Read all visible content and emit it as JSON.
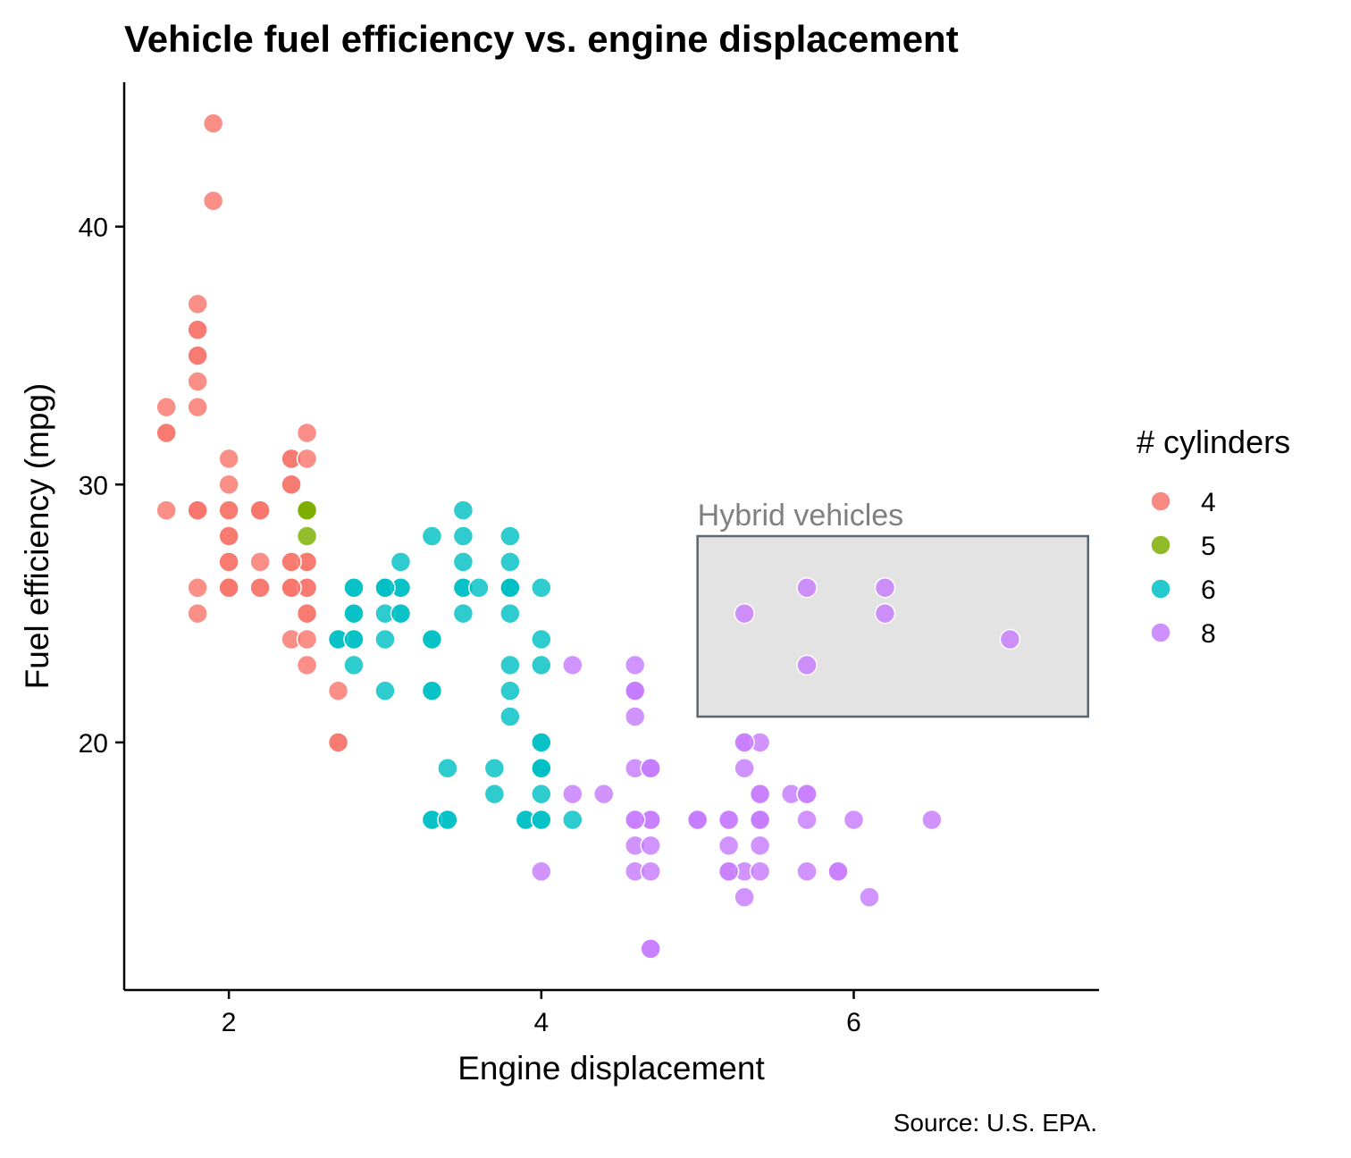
{
  "chart_data": {
    "type": "scatter",
    "title": "Vehicle fuel efficiency vs. engine displacement",
    "xlabel": "Engine displacement",
    "ylabel": "Fuel efficiency (mpg)",
    "caption": "Source: U.S. EPA.",
    "xlim": [
      1.33,
      7.57
    ],
    "ylim": [
      10.4,
      45.6
    ],
    "xticks": [
      2,
      4,
      6
    ],
    "yticks": [
      20,
      30,
      40
    ],
    "grid": false,
    "legend": {
      "title": "# cylinders",
      "position": "right"
    },
    "annotation": {
      "label": "Hybrid vehicles",
      "xmin": 5.0,
      "xmax": 7.5,
      "ymin": 21,
      "ymax": 28,
      "fill": "#e3e3e3",
      "stroke": "#5a6670",
      "text_color": "#808080"
    },
    "series": [
      {
        "name": "4",
        "color": "#F8766D",
        "points": [
          [
            1.8,
            29
          ],
          [
            1.8,
            29
          ],
          [
            2.0,
            31
          ],
          [
            2.0,
            30
          ],
          [
            1.8,
            26
          ],
          [
            1.8,
            25
          ],
          [
            2.0,
            28
          ],
          [
            2.0,
            26
          ],
          [
            2.0,
            29
          ],
          [
            2.0,
            27
          ],
          [
            2.4,
            27
          ],
          [
            2.4,
            30
          ],
          [
            2.4,
            31
          ],
          [
            2.4,
            26
          ],
          [
            2.2,
            26
          ],
          [
            2.2,
            29
          ],
          [
            2.4,
            31
          ],
          [
            2.4,
            30
          ],
          [
            2.2,
            29
          ],
          [
            2.2,
            27
          ],
          [
            2.4,
            26
          ],
          [
            2.4,
            24
          ],
          [
            2.5,
            29
          ],
          [
            2.5,
            26
          ],
          [
            2.5,
            27
          ],
          [
            2.5,
            27
          ],
          [
            2.5,
            31
          ],
          [
            2.5,
            32
          ],
          [
            2.5,
            24
          ],
          [
            2.5,
            23
          ],
          [
            2.5,
            25
          ],
          [
            2.5,
            26
          ],
          [
            2.7,
            22
          ],
          [
            2.7,
            20
          ],
          [
            2.7,
            20
          ],
          [
            1.8,
            29
          ],
          [
            1.8,
            29
          ],
          [
            1.8,
            37
          ],
          [
            1.8,
            35
          ],
          [
            1.8,
            35
          ],
          [
            1.8,
            36
          ],
          [
            1.8,
            36
          ],
          [
            1.9,
            44
          ],
          [
            1.9,
            41
          ],
          [
            1.8,
            34
          ],
          [
            1.8,
            33
          ],
          [
            1.6,
            32
          ],
          [
            1.6,
            32
          ],
          [
            1.6,
            33
          ],
          [
            1.6,
            29
          ],
          [
            2.0,
            28
          ],
          [
            2.0,
            26
          ],
          [
            2.0,
            27
          ],
          [
            2.0,
            29
          ],
          [
            2.2,
            26
          ],
          [
            2.2,
            29
          ],
          [
            2.0,
            26
          ],
          [
            2.4,
            26
          ],
          [
            2.4,
            27
          ],
          [
            2.5,
            25
          ]
        ]
      },
      {
        "name": "5",
        "color": "#7CAE00",
        "points": [
          [
            2.5,
            29
          ],
          [
            2.5,
            29
          ],
          [
            2.5,
            28
          ],
          [
            2.5,
            29
          ]
        ]
      },
      {
        "name": "6",
        "color": "#00BFC4",
        "points": [
          [
            2.8,
            26
          ],
          [
            3.1,
            27
          ],
          [
            2.8,
            25
          ],
          [
            2.8,
            25
          ],
          [
            3.1,
            25
          ],
          [
            2.8,
            24
          ],
          [
            3.0,
            25
          ],
          [
            3.0,
            26
          ],
          [
            3.1,
            26
          ],
          [
            2.8,
            23
          ],
          [
            3.1,
            25
          ],
          [
            3.3,
            24
          ],
          [
            3.3,
            24
          ],
          [
            3.3,
            22
          ],
          [
            3.3,
            22
          ],
          [
            3.4,
            19
          ],
          [
            3.4,
            17
          ],
          [
            3.7,
            19
          ],
          [
            3.7,
            18
          ],
          [
            3.9,
            17
          ],
          [
            3.9,
            17
          ],
          [
            4.0,
            19
          ],
          [
            4.0,
            20
          ],
          [
            4.0,
            17
          ],
          [
            4.0,
            19
          ],
          [
            4.0,
            20
          ],
          [
            4.0,
            18
          ],
          [
            4.0,
            17
          ],
          [
            4.2,
            17
          ],
          [
            4.0,
            19
          ],
          [
            3.3,
            17
          ],
          [
            3.3,
            17
          ],
          [
            3.5,
            26
          ],
          [
            3.5,
            25
          ],
          [
            3.5,
            29
          ],
          [
            3.5,
            28
          ],
          [
            3.5,
            27
          ],
          [
            3.5,
            26
          ],
          [
            3.6,
            26
          ],
          [
            3.8,
            26
          ],
          [
            3.8,
            25
          ],
          [
            3.8,
            26
          ],
          [
            3.8,
            27
          ],
          [
            3.8,
            28
          ],
          [
            3.8,
            26
          ],
          [
            3.8,
            23
          ],
          [
            3.8,
            22
          ],
          [
            3.8,
            21
          ],
          [
            4.0,
            26
          ],
          [
            4.0,
            24
          ],
          [
            4.0,
            23
          ],
          [
            3.0,
            24
          ],
          [
            3.0,
            22
          ],
          [
            3.0,
            26
          ],
          [
            2.7,
            24
          ],
          [
            2.7,
            24
          ],
          [
            3.3,
            28
          ],
          [
            3.1,
            26
          ],
          [
            2.8,
            26
          ],
          [
            3.0,
            26
          ],
          [
            3.4,
            17
          ],
          [
            2.8,
            24
          ]
        ]
      },
      {
        "name": "8",
        "color": "#C77CFF",
        "points": [
          [
            4.2,
            23
          ],
          [
            4.2,
            18
          ],
          [
            4.4,
            18
          ],
          [
            4.6,
            23
          ],
          [
            4.6,
            22
          ],
          [
            4.6,
            22
          ],
          [
            4.6,
            19
          ],
          [
            4.6,
            17
          ],
          [
            4.6,
            16
          ],
          [
            4.6,
            15
          ],
          [
            4.6,
            21
          ],
          [
            4.7,
            19
          ],
          [
            4.7,
            17
          ],
          [
            4.7,
            16
          ],
          [
            4.7,
            15
          ],
          [
            4.7,
            12
          ],
          [
            4.7,
            12
          ],
          [
            4.7,
            17
          ],
          [
            4.7,
            19
          ],
          [
            4.0,
            15
          ],
          [
            5.0,
            17
          ],
          [
            5.0,
            17
          ],
          [
            5.2,
            15
          ],
          [
            5.2,
            16
          ],
          [
            5.2,
            17
          ],
          [
            5.3,
            15
          ],
          [
            5.3,
            14
          ],
          [
            5.3,
            20
          ],
          [
            5.3,
            19
          ],
          [
            5.3,
            25
          ],
          [
            5.4,
            15
          ],
          [
            5.4,
            16
          ],
          [
            5.4,
            17
          ],
          [
            5.4,
            18
          ],
          [
            5.4,
            20
          ],
          [
            5.4,
            17
          ],
          [
            5.6,
            18
          ],
          [
            5.7,
            26
          ],
          [
            5.7,
            23
          ],
          [
            5.7,
            18
          ],
          [
            5.7,
            17
          ],
          [
            5.7,
            15
          ],
          [
            5.9,
            15
          ],
          [
            6.0,
            17
          ],
          [
            6.1,
            14
          ],
          [
            6.2,
            26
          ],
          [
            6.2,
            25
          ],
          [
            6.5,
            17
          ],
          [
            7.0,
            24
          ],
          [
            5.2,
            15
          ],
          [
            5.3,
            20
          ],
          [
            5.9,
            15
          ],
          [
            5.4,
            18
          ],
          [
            5.7,
            18
          ],
          [
            4.6,
            17
          ],
          [
            4.7,
            19
          ],
          [
            5.0,
            17
          ],
          [
            4.6,
            22
          ],
          [
            5.2,
            17
          ],
          [
            5.4,
            17
          ]
        ]
      }
    ]
  }
}
